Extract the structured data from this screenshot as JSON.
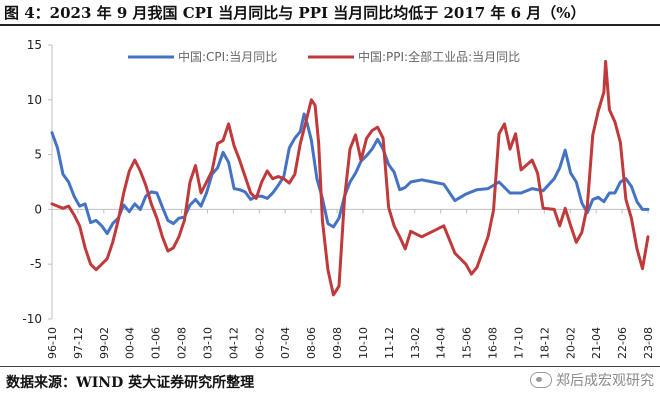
{
  "header": {
    "prefix": "图 4：",
    "title": "2023 年 9 月我国 CPI 当月同比与 PPI 当月同比均低于 2017 年 6 月（%）"
  },
  "footer": {
    "source": "数据来源：WIND  英大证券研究所整理",
    "watermark": "郑后成宏观研究"
  },
  "colors": {
    "cpi": "#4472c4",
    "ppi": "#c0393b",
    "axis": "#bfbfbf"
  },
  "chart_data": {
    "type": "line",
    "title": "2023 年 9 月我国 CPI 当月同比与 PPI 当月同比均低于 2017 年 6 月（%）",
    "ylim": [
      -10,
      15
    ],
    "yticks": [
      -10,
      -5,
      0,
      5,
      10,
      15
    ],
    "xlim": [
      1996.75,
      2023.75
    ],
    "xticks": [
      "96-10",
      "97-12",
      "99-02",
      "00-04",
      "01-06",
      "02-08",
      "03-10",
      "04-12",
      "06-02",
      "07-04",
      "08-06",
      "09-08",
      "10-10",
      "11-12",
      "13-02",
      "14-04",
      "15-06",
      "16-08",
      "17-10",
      "18-12",
      "20-02",
      "21-04",
      "22-06",
      "23-08"
    ],
    "legend": [
      "中国:CPI:当月同比",
      "中国:PPI:全部工业品:当月同比"
    ],
    "legend_position": "top-right",
    "series": [
      {
        "name": "中国:CPI:当月同比",
        "x": [
          1996.75,
          1997.0,
          1997.25,
          1997.5,
          1997.75,
          1998.0,
          1998.25,
          1998.5,
          1998.75,
          1999.0,
          1999.25,
          1999.5,
          1999.75,
          2000.0,
          2000.25,
          2000.5,
          2000.75,
          2001.0,
          2001.25,
          2001.5,
          2001.75,
          2002.0,
          2002.25,
          2002.5,
          2002.75,
          2003.0,
          2003.25,
          2003.5,
          2003.75,
          2004.0,
          2004.25,
          2004.5,
          2004.75,
          2005.0,
          2005.25,
          2005.5,
          2005.75,
          2006.0,
          2006.25,
          2006.5,
          2006.75,
          2007.0,
          2007.25,
          2007.5,
          2007.75,
          2008.0,
          2008.17,
          2008.33,
          2008.5,
          2008.75,
          2009.0,
          2009.25,
          2009.5,
          2009.75,
          2010.0,
          2010.25,
          2010.5,
          2010.75,
          2011.0,
          2011.25,
          2011.5,
          2011.75,
          2012.0,
          2012.25,
          2012.5,
          2012.75,
          2013.0,
          2013.5,
          2014.0,
          2014.5,
          2015.0,
          2015.5,
          2016.0,
          2016.5,
          2017.0,
          2017.5,
          2018.0,
          2018.5,
          2019.0,
          2019.5,
          2019.75,
          2020.0,
          2020.25,
          2020.5,
          2020.75,
          2021.0,
          2021.25,
          2021.5,
          2021.75,
          2022.0,
          2022.25,
          2022.5,
          2022.75,
          2023.0,
          2023.25,
          2023.5,
          2023.75
        ],
        "values": [
          7.0,
          5.6,
          3.2,
          2.5,
          1.2,
          0.3,
          0.5,
          -1.2,
          -1.0,
          -1.5,
          -2.2,
          -1.3,
          -0.8,
          0.4,
          -0.2,
          0.5,
          0.0,
          1.2,
          1.6,
          1.5,
          0.2,
          -1.0,
          -1.3,
          -0.8,
          -0.7,
          0.4,
          0.9,
          0.3,
          1.5,
          3.2,
          3.8,
          5.2,
          4.3,
          1.9,
          1.8,
          1.6,
          0.9,
          1.2,
          1.2,
          1.0,
          1.5,
          2.2,
          3.0,
          5.6,
          6.5,
          7.1,
          8.7,
          7.7,
          6.3,
          2.8,
          1.0,
          -1.3,
          -1.6,
          -0.8,
          1.2,
          2.5,
          3.3,
          4.4,
          4.9,
          5.5,
          6.4,
          5.5,
          4.1,
          3.4,
          1.8,
          2.0,
          2.5,
          2.7,
          2.5,
          2.3,
          0.8,
          1.4,
          1.8,
          1.9,
          2.5,
          1.5,
          1.5,
          1.9,
          1.7,
          2.8,
          3.8,
          5.4,
          3.3,
          2.5,
          0.6,
          -0.3,
          0.9,
          1.1,
          0.7,
          1.5,
          1.5,
          2.5,
          2.8,
          2.1,
          0.7,
          0.0,
          0.0
        ]
      },
      {
        "name": "中国:PPI:全部工业品:当月同比",
        "x": [
          1996.75,
          1997.0,
          1997.25,
          1997.5,
          1997.75,
          1998.0,
          1998.25,
          1998.5,
          1998.75,
          1999.0,
          1999.25,
          1999.5,
          1999.75,
          2000.0,
          2000.25,
          2000.5,
          2000.75,
          2001.0,
          2001.25,
          2001.5,
          2001.75,
          2002.0,
          2002.25,
          2002.5,
          2002.75,
          2003.0,
          2003.25,
          2003.5,
          2003.75,
          2004.0,
          2004.25,
          2004.5,
          2004.75,
          2005.0,
          2005.25,
          2005.5,
          2005.75,
          2006.0,
          2006.25,
          2006.5,
          2006.75,
          2007.0,
          2007.25,
          2007.5,
          2007.75,
          2008.0,
          2008.25,
          2008.5,
          2008.67,
          2008.83,
          2009.0,
          2009.25,
          2009.5,
          2009.75,
          2010.0,
          2010.25,
          2010.5,
          2010.75,
          2011.0,
          2011.25,
          2011.5,
          2011.75,
          2012.0,
          2012.25,
          2012.5,
          2012.75,
          2013.0,
          2013.5,
          2014.0,
          2014.5,
          2015.0,
          2015.5,
          2015.75,
          2016.0,
          2016.5,
          2016.75,
          2017.0,
          2017.25,
          2017.5,
          2017.75,
          2018.0,
          2018.5,
          2018.75,
          2019.0,
          2019.5,
          2019.75,
          2020.0,
          2020.25,
          2020.5,
          2020.75,
          2021.0,
          2021.25,
          2021.5,
          2021.75,
          2021.83,
          2022.0,
          2022.25,
          2022.5,
          2022.75,
          2023.0,
          2023.25,
          2023.5,
          2023.75
        ],
        "values": [
          0.5,
          0.3,
          0.1,
          0.3,
          -0.5,
          -1.5,
          -3.5,
          -5.0,
          -5.5,
          -5.0,
          -4.5,
          -3.0,
          -1.0,
          1.5,
          3.5,
          4.5,
          3.5,
          2.2,
          0.5,
          -0.8,
          -2.5,
          -3.8,
          -3.5,
          -2.5,
          -1.0,
          2.5,
          4.0,
          1.5,
          2.5,
          3.5,
          6.0,
          6.3,
          7.8,
          5.8,
          4.5,
          3.0,
          1.5,
          1.0,
          2.5,
          3.5,
          2.8,
          3.0,
          2.8,
          2.4,
          3.2,
          6.0,
          8.0,
          10.0,
          9.5,
          6.0,
          -1.0,
          -5.5,
          -7.8,
          -7.0,
          1.0,
          5.5,
          6.8,
          4.5,
          6.5,
          7.2,
          7.5,
          6.5,
          0.2,
          -1.5,
          -2.5,
          -3.6,
          -2.0,
          -2.5,
          -2.0,
          -1.5,
          -4.0,
          -5.0,
          -5.9,
          -5.3,
          -2.5,
          -0.1,
          6.9,
          7.8,
          5.5,
          6.9,
          3.6,
          4.5,
          3.3,
          0.1,
          0.0,
          -1.5,
          0.1,
          -1.5,
          -3.0,
          -2.1,
          0.3,
          6.8,
          9.0,
          10.7,
          13.5,
          9.1,
          8.0,
          6.1,
          0.9,
          -0.8,
          -3.6,
          -5.4,
          -2.5
        ]
      }
    ]
  }
}
